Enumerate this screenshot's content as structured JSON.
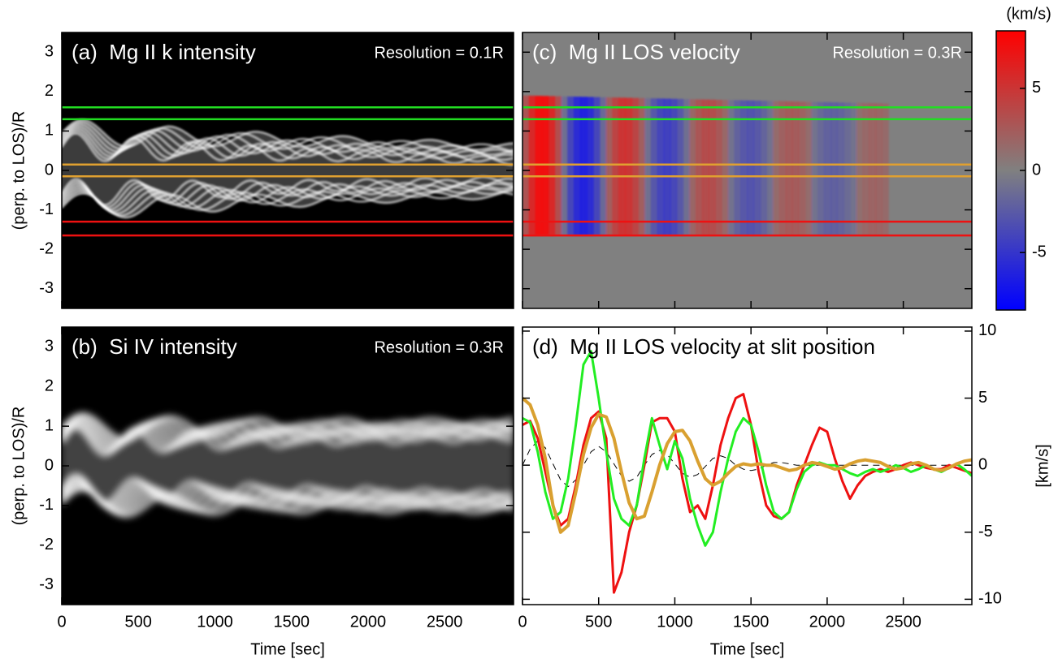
{
  "chart_data": [
    {
      "type": "heatmap",
      "title": "(a)  Mg II k intensity",
      "annotation": "Resolution = 0.1R",
      "ylabel": "(perp. to LOS)/R",
      "background": "#000000",
      "texture": "intensity",
      "blur": 1,
      "xlim": [
        0,
        2950
      ],
      "xticks": [
        0,
        500,
        1000,
        1500,
        2000,
        2500
      ],
      "show_xtick_labels": false,
      "ylim": [
        -3.5,
        3.5
      ],
      "yticks": [
        -3,
        -2,
        -1,
        0,
        1,
        2,
        3
      ],
      "show_ytick_labels": true,
      "slits": [
        {
          "color": "#22dd22",
          "values": [
            1.3,
            1.6
          ]
        },
        {
          "color": "#e0a030",
          "values": [
            -0.15,
            0.15
          ]
        },
        {
          "color": "#ee1111",
          "values": [
            -1.65,
            -1.3
          ]
        }
      ]
    },
    {
      "type": "heatmap",
      "title": "(b)  Si IV intensity",
      "annotation": "Resolution = 0.3R",
      "ylabel": "(perp. to LOS)/R",
      "xlabel": "Time [sec]",
      "background": "#000000",
      "texture": "intensity",
      "blur": 4,
      "xlim": [
        0,
        2950
      ],
      "xticks": [
        0,
        500,
        1000,
        1500,
        2000,
        2500
      ],
      "show_xtick_labels": true,
      "ylim": [
        -3.5,
        3.5
      ],
      "yticks": [
        -3,
        -2,
        -1,
        0,
        1,
        2,
        3
      ],
      "show_ytick_labels": true
    },
    {
      "type": "heatmap",
      "title": "(c)  Mg II LOS velocity",
      "annotation": "Resolution = 0.3R",
      "background": "#808080",
      "texture": "velocity",
      "blur": 1,
      "xlim": [
        0,
        2950
      ],
      "xticks": [
        0,
        500,
        1000,
        1500,
        2000,
        2500
      ],
      "show_xtick_labels": false,
      "ylim": [
        -3.5,
        3.5
      ],
      "yticks": [
        -3,
        -2,
        -1,
        0,
        1,
        2,
        3
      ],
      "show_ytick_labels": false,
      "slits": [
        {
          "color": "#22dd22",
          "values": [
            1.3,
            1.6
          ]
        },
        {
          "color": "#e0a030",
          "values": [
            -0.15,
            0.15
          ]
        },
        {
          "color": "#ee1111",
          "values": [
            -1.65,
            -1.3
          ]
        }
      ],
      "colorbar": {
        "label": "(km/s)",
        "lim": [
          -8.5,
          8.5
        ],
        "ticks": [
          -5,
          0,
          5
        ],
        "colors": [
          "#0000ff",
          "#808080",
          "#ff0000"
        ]
      }
    },
    {
      "type": "line",
      "title": "(d)  Mg II LOS velocity at slit position",
      "ylabel": "[km/s]",
      "ylabel_side": "right",
      "xlabel": "Time [sec]",
      "xlim": [
        0,
        2950
      ],
      "xticks": [
        0,
        500,
        1000,
        1500,
        2000,
        2500
      ],
      "show_xtick_labels": true,
      "ylim": [
        -10.4,
        10.3
      ],
      "yticks": [
        -10,
        -5,
        0,
        5,
        10
      ],
      "show_ytick_labels": true,
      "x": [
        0,
        50,
        100,
        150,
        200,
        250,
        300,
        350,
        400,
        450,
        500,
        550,
        600,
        650,
        700,
        750,
        800,
        850,
        900,
        950,
        1000,
        1050,
        1100,
        1150,
        1200,
        1250,
        1300,
        1350,
        1400,
        1450,
        1500,
        1550,
        1600,
        1650,
        1700,
        1750,
        1800,
        1850,
        1900,
        1950,
        2000,
        2050,
        2100,
        2150,
        2200,
        2250,
        2300,
        2350,
        2400,
        2450,
        2500,
        2550,
        2600,
        2650,
        2700,
        2750,
        2800,
        2850,
        2900,
        2950
      ],
      "series": [
        {
          "color": "#000000",
          "dash": true,
          "width": 1,
          "values": [
            0,
            1.2,
            1.8,
            1.3,
            0.1,
            -1.1,
            -1.6,
            -1.1,
            0,
            1.0,
            1.4,
            1.0,
            0.1,
            -0.8,
            -1.2,
            -0.9,
            0,
            0.8,
            1.1,
            0.8,
            0.1,
            -0.6,
            -0.9,
            -0.7,
            -0.1,
            0.5,
            0.7,
            0.5,
            0,
            -0.3,
            -0.4,
            -0.3,
            0,
            0.2,
            0.2,
            0.1,
            0,
            0,
            0,
            0,
            0,
            0,
            0,
            0,
            0,
            0,
            0,
            0,
            0,
            0,
            0,
            0,
            0,
            0,
            0,
            0,
            0,
            0,
            0,
            0
          ]
        },
        {
          "color": "#ee1111",
          "dash": false,
          "width": 3,
          "values": [
            3.0,
            3.3,
            2,
            -0.5,
            -3,
            -4.5,
            -4,
            -1.5,
            1.5,
            3.5,
            4,
            2,
            -9.5,
            -8,
            -5,
            -3,
            0,
            3.2,
            3.5,
            3.5,
            2.5,
            -1,
            -3.5,
            -3,
            -4,
            -1.5,
            1.5,
            3.5,
            5,
            5.3,
            3,
            -0.5,
            -3,
            -3.8,
            -4,
            -3.5,
            -1.5,
            0,
            1.5,
            2.8,
            2.5,
            0.5,
            -1.2,
            -2.5,
            -1.5,
            -0.8,
            -0.5,
            -0.3,
            -0.5,
            -0.3,
            0,
            0.2,
            0,
            -0.2,
            -0.3,
            -0.3,
            0,
            -0.2,
            -0.4,
            -0.6
          ]
        },
        {
          "color": "#22ee22",
          "dash": false,
          "width": 3,
          "values": [
            3.5,
            3.2,
            1,
            -2,
            -4,
            -3.5,
            -1,
            3,
            7.5,
            8.5,
            5,
            1,
            -2.5,
            -4,
            -4.5,
            -3,
            0.5,
            3.5,
            1.5,
            -0.3,
            1.8,
            0.5,
            -2.5,
            -4.5,
            -6,
            -5,
            -2,
            0.5,
            2.5,
            3.5,
            3,
            1,
            -1.5,
            -3.5,
            -4,
            -3.5,
            -1.8,
            -0.5,
            0,
            0.2,
            0,
            0,
            -0.3,
            -0.6,
            -0.8,
            -0.5,
            -0.3,
            -0.5,
            -0.3,
            0,
            -0.2,
            -0.5,
            -0.3,
            0,
            -0.3,
            -0.5,
            -0.2,
            0.1,
            -0.3,
            -0.8
          ]
        },
        {
          "color": "#d9a030",
          "dash": false,
          "width": 4,
          "values": [
            5.0,
            4.5,
            3,
            0.5,
            -3,
            -5,
            -4.5,
            -2,
            0.8,
            2.8,
            3.8,
            3.6,
            2,
            -0.5,
            -2.8,
            -4,
            -3.8,
            -2,
            0,
            1.6,
            2.5,
            2.6,
            1.8,
            0.3,
            -1,
            -1.5,
            -1.2,
            -0.6,
            -0.1,
            0.1,
            0,
            0.1,
            0,
            0,
            -0.2,
            -0.4,
            -0.3,
            0,
            0.2,
            0.1,
            -0.1,
            -0.3,
            -0.2,
            0.1,
            0.3,
            0.4,
            0.3,
            0.2,
            -0.1,
            -0.3,
            -0.2,
            0.1,
            0.2,
            0,
            -0.3,
            -0.4,
            -0.2,
            0.1,
            0.3,
            0.4
          ]
        }
      ]
    }
  ]
}
